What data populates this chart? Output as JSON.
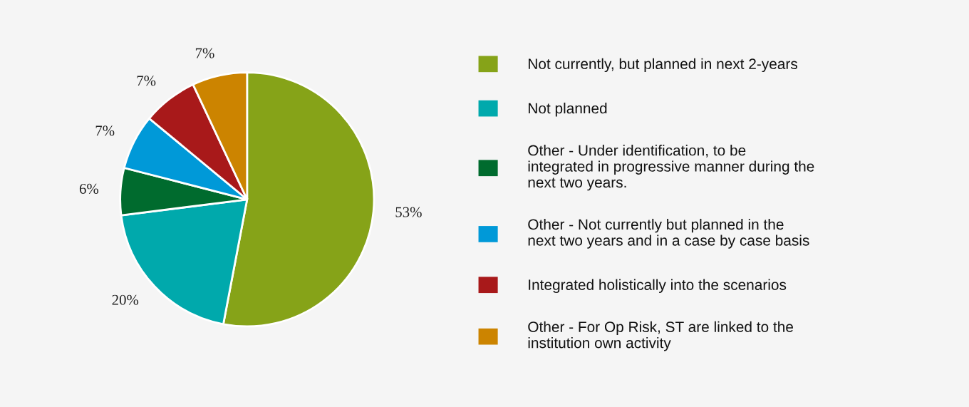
{
  "chart_data": {
    "type": "pie",
    "categories": [
      "Not currently, but planned in next 2-years",
      "Not planned",
      "Other - Under identification, to be integrated in progressive manner during the next two years.",
      "Other - Not currently but planned in the next two years and in a case by case basis",
      "Integrated holistically into the scenarios",
      "Other - For Op Risk, ST are linked to the institution own activity"
    ],
    "values": [
      53,
      20,
      6,
      7,
      7,
      7
    ],
    "value_labels": [
      "53%",
      "20%",
      "6%",
      "7%",
      "7%",
      "7%"
    ],
    "colors": [
      "#86a318",
      "#00a9ac",
      "#006b2e",
      "#0099d8",
      "#a8191a",
      "#cc8400"
    ],
    "legend": "right"
  }
}
